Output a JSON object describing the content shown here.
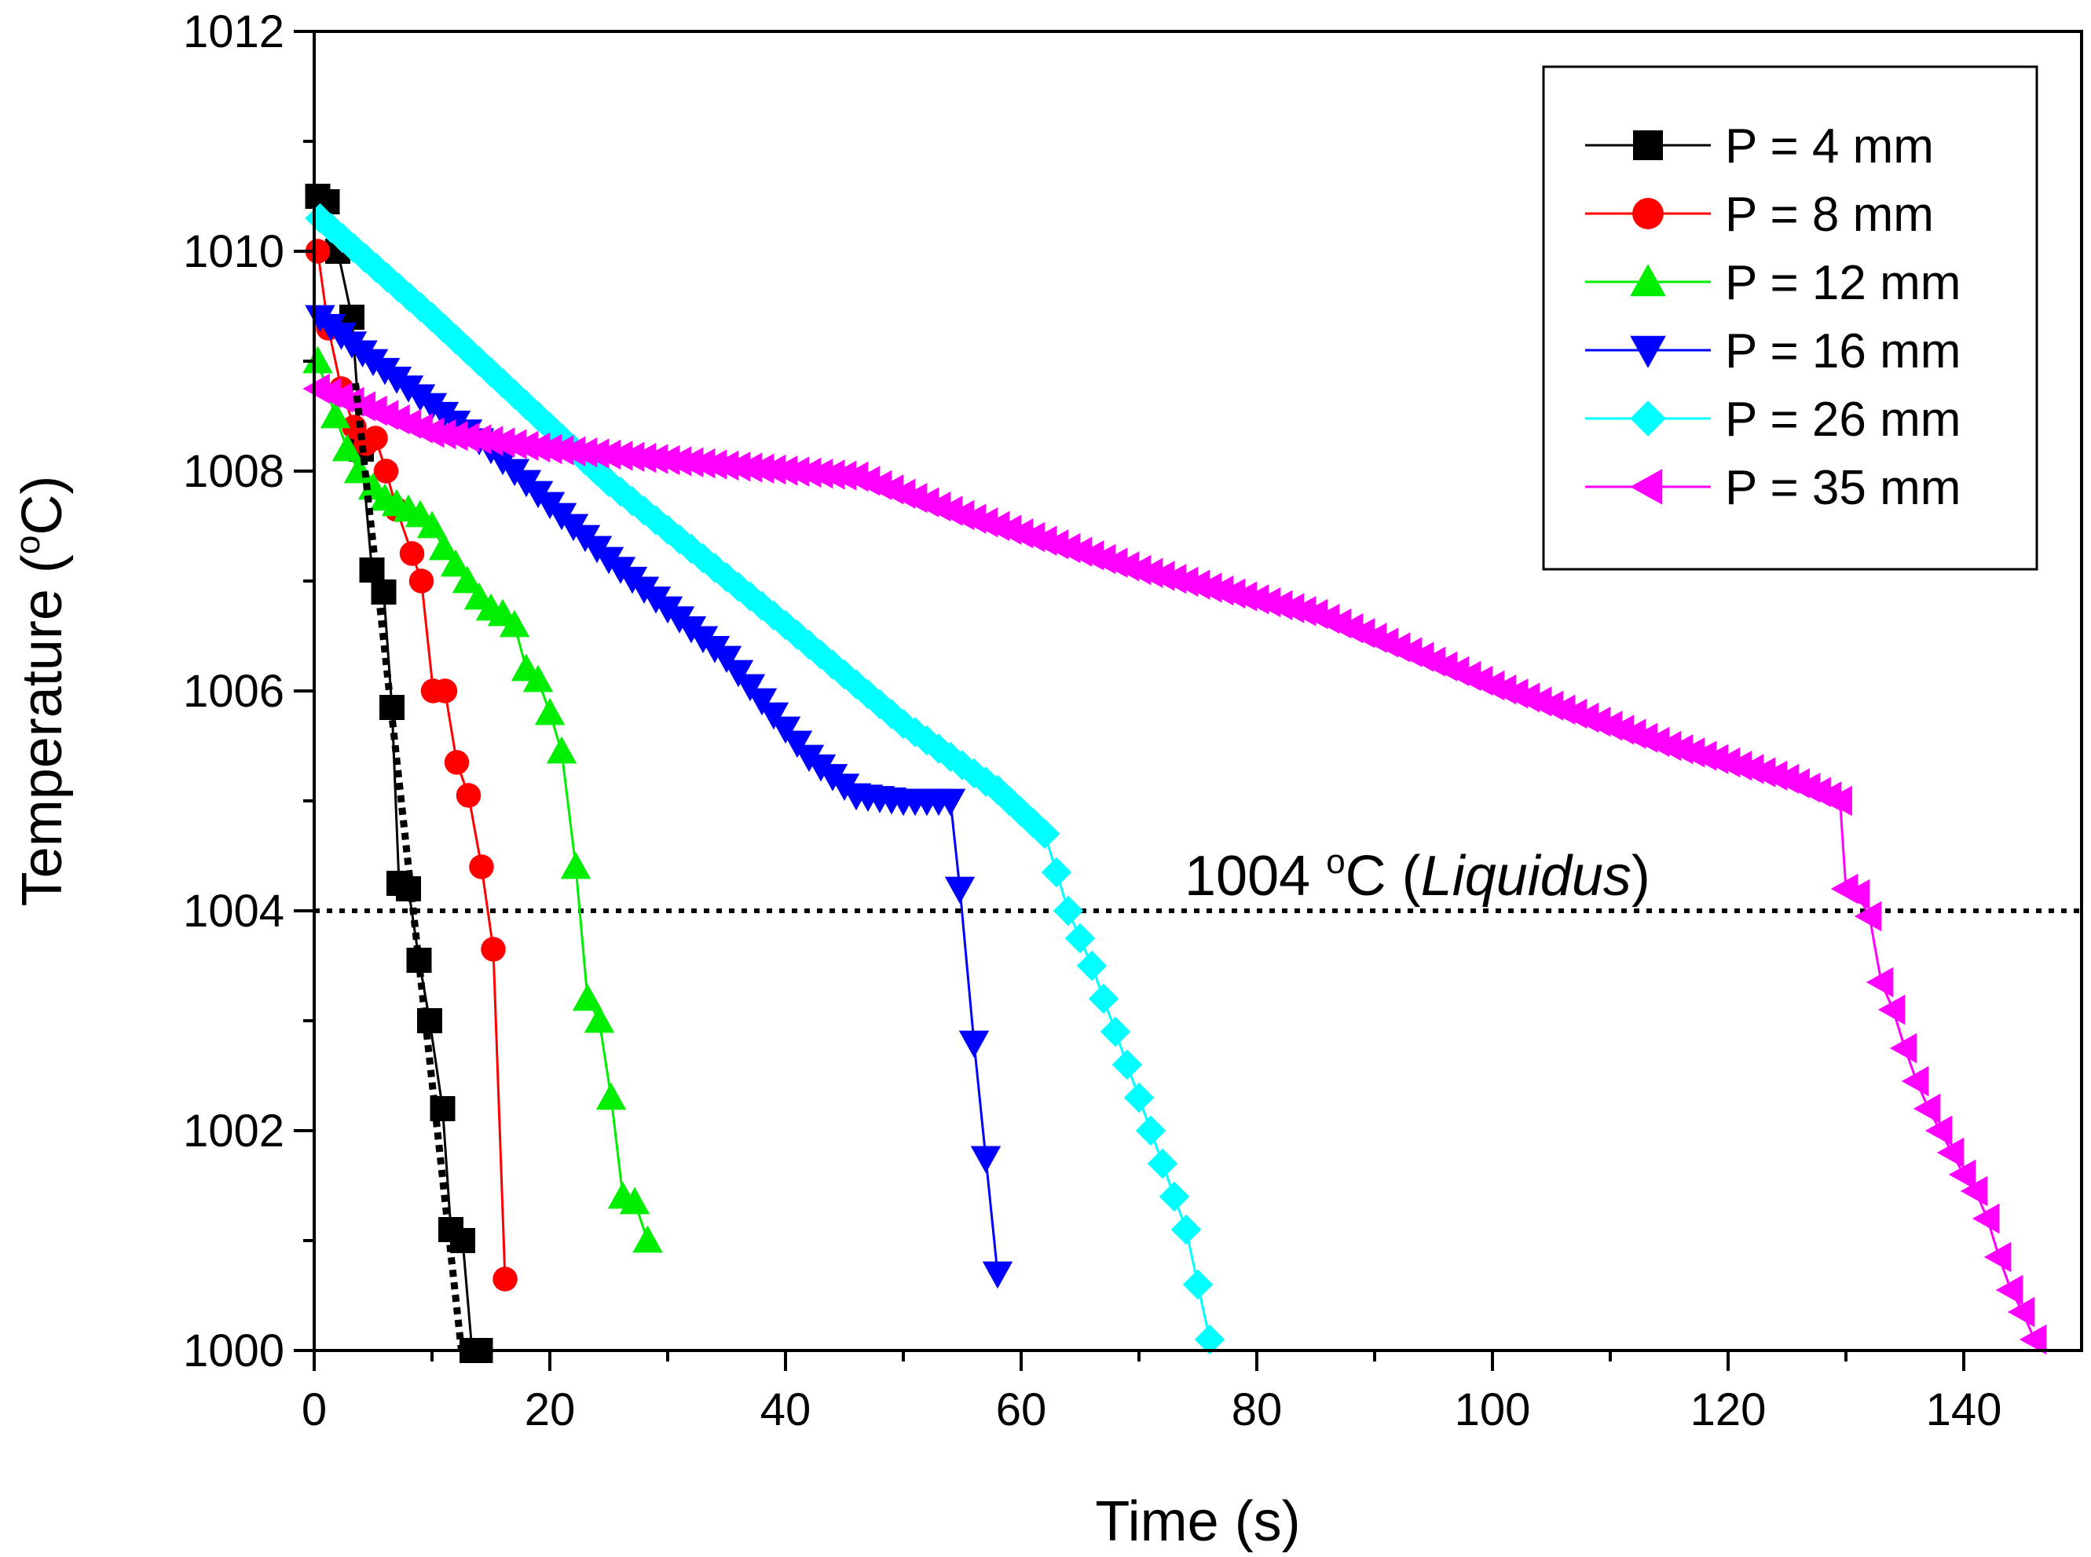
{
  "chart_data": {
    "type": "line",
    "xlabel": "Time (s)",
    "ylabel_main": "Temperature (",
    "ylabel_sup": "o",
    "ylabel_end": "C)",
    "xlim": [
      0,
      150
    ],
    "ylim": [
      1000,
      1012
    ],
    "xticks": [
      "0",
      "20",
      "40",
      "60",
      "80",
      "100",
      "120",
      "140"
    ],
    "yticks": [
      "1000",
      "1002",
      "1004",
      "1006",
      "1008",
      "1010",
      "1012"
    ],
    "grid": false,
    "legend_position": "top-right",
    "reference_line": {
      "y": 1004,
      "style": "dotted",
      "label_value": "1004 ",
      "label_sup": "o",
      "label_unit": "C (",
      "label_italic": "Liquidus",
      "label_close": ")"
    },
    "dotted_fit": {
      "x": [
        3.5,
        12.5
      ],
      "y": [
        1008.8,
        1000
      ]
    },
    "series": [
      {
        "name": "P = 4 mm",
        "color": "#000000",
        "marker": "square",
        "x": [
          0.3,
          1.1,
          2.0,
          3.2,
          4.0,
          4.9,
          5.9,
          6.6,
          7.2,
          8.0,
          8.9,
          9.8,
          10.9,
          11.6,
          12.6,
          13.4,
          14.1
        ],
        "y": [
          1010.5,
          1010.45,
          1010.0,
          1009.4,
          1008.2,
          1007.1,
          1006.9,
          1005.85,
          1004.25,
          1004.2,
          1003.55,
          1003.0,
          1002.2,
          1001.1,
          1001.0,
          1000.0,
          1000.0
        ]
      },
      {
        "name": "P = 8 mm",
        "color": "#ff0000",
        "marker": "circle",
        "x": [
          0.3,
          1.2,
          2.3,
          3.4,
          4.4,
          5.2,
          6.1,
          7.0,
          8.3,
          9.1,
          10.1,
          11.1,
          12.1,
          13.1,
          14.2,
          15.2,
          16.2
        ],
        "y": [
          1010.0,
          1009.3,
          1008.75,
          1008.4,
          1008.25,
          1008.3,
          1008.0,
          1007.65,
          1007.25,
          1007.0,
          1006.0,
          1006.0,
          1005.35,
          1005.05,
          1004.4,
          1003.65,
          1000.65
        ]
      },
      {
        "name": "P = 12 mm",
        "color": "#00ee00",
        "marker": "triangle-up",
        "x": [
          0.3,
          1.8,
          2.8,
          3.8,
          5.0,
          6.0,
          7.0,
          8.0,
          9.0,
          10.0,
          11.0,
          12.0,
          13.0,
          14.0,
          15.0,
          16.0,
          17.0,
          18.0,
          19.0,
          20.0,
          21.0,
          22.2,
          23.2,
          24.2,
          25.2,
          26.2,
          27.2,
          28.3
        ],
        "y": [
          1009.0,
          1008.5,
          1008.2,
          1008.0,
          1007.85,
          1007.75,
          1007.7,
          1007.65,
          1007.6,
          1007.5,
          1007.3,
          1007.15,
          1007.0,
          1006.85,
          1006.75,
          1006.7,
          1006.6,
          1006.2,
          1006.1,
          1005.8,
          1005.45,
          1004.4,
          1003.2,
          1003.0,
          1002.3,
          1001.4,
          1001.35,
          1001.0
        ]
      },
      {
        "name": "P = 16 mm",
        "color": "#0000ff",
        "marker": "triangle-down",
        "knots": [
          [
            0.5,
            1009.4
          ],
          [
            5,
            1009.0
          ],
          [
            15,
            1008.2
          ],
          [
            25,
            1007.2
          ],
          [
            35,
            1006.3
          ],
          [
            42,
            1005.4
          ],
          [
            46,
            1005.05
          ],
          [
            50,
            1005.0
          ],
          [
            54,
            1005.0
          ]
        ],
        "step": 1.0,
        "extra_x": [
          54.8,
          56.0,
          57.0,
          58.0
        ],
        "extra_y": [
          1004.2,
          1002.8,
          1001.75,
          1000.7
        ]
      },
      {
        "name": "P = 26 mm",
        "color": "#00ffff",
        "marker": "diamond",
        "knots": [
          [
            0.5,
            1010.3
          ],
          [
            10,
            1009.4
          ],
          [
            25,
            1007.9
          ],
          [
            40,
            1006.6
          ],
          [
            50,
            1005.7
          ],
          [
            58,
            1005.1
          ],
          [
            62,
            1004.7
          ],
          [
            64,
            1004.0
          ],
          [
            66,
            1003.5
          ],
          [
            68,
            1002.9
          ],
          [
            70,
            1002.3
          ],
          [
            72,
            1001.7
          ],
          [
            74,
            1001.1
          ],
          [
            76,
            1000.1
          ]
        ],
        "step": 1.0,
        "extra_x": [],
        "extra_y": []
      },
      {
        "name": "P = 35 mm",
        "color": "#ff00ff",
        "marker": "triangle-left",
        "knots": [
          [
            0.3,
            1008.75
          ],
          [
            10,
            1008.35
          ],
          [
            20,
            1008.2
          ],
          [
            35,
            1008.05
          ],
          [
            46,
            1007.95
          ],
          [
            55,
            1007.6
          ],
          [
            70,
            1007.1
          ],
          [
            85,
            1006.7
          ],
          [
            100,
            1006.05
          ],
          [
            115,
            1005.5
          ],
          [
            125,
            1005.2
          ],
          [
            129.5,
            1005.0
          ]
        ],
        "step": 1.0,
        "extra_x": [
          130.0,
          131.0,
          132.0,
          133.0,
          134.0,
          135.0,
          136.0,
          137.0,
          138.0,
          139.0,
          140.0,
          141.0,
          142.0,
          143.0,
          144.0,
          145.0,
          146.0
        ],
        "extra_y": [
          1004.2,
          1004.15,
          1003.95,
          1003.35,
          1003.1,
          1002.75,
          1002.45,
          1002.2,
          1002.0,
          1001.8,
          1001.6,
          1001.45,
          1001.2,
          1000.85,
          1000.55,
          1000.35,
          1000.1
        ]
      }
    ]
  }
}
